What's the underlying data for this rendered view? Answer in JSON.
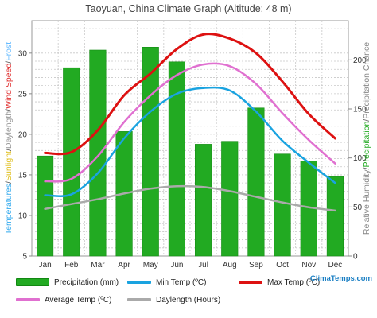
{
  "chart_data": {
    "type": "bar+line",
    "title": "Taoyuan, China Climate Graph (Altitude: 48 m)",
    "categories": [
      "Jan",
      "Feb",
      "Mar",
      "Apr",
      "May",
      "Jun",
      "Jul",
      "Aug",
      "Sep",
      "Oct",
      "Nov",
      "Dec"
    ],
    "left_axis": {
      "label_parts": [
        {
          "text": "Temperatures",
          "color": "#33aaee"
        },
        {
          "text": "/",
          "color": "#555555"
        },
        {
          "text": "Sunlight",
          "color": "#e0c020"
        },
        {
          "text": "/",
          "color": "#555555"
        },
        {
          "text": "Daylength",
          "color": "#999999"
        },
        {
          "text": "/",
          "color": "#555555"
        },
        {
          "text": "Wind Speed",
          "color": "#e03030"
        },
        {
          "text": "/",
          "color": "#555555"
        },
        {
          "text": "Frost",
          "color": "#66bbff"
        }
      ],
      "ylim": [
        5,
        34
      ],
      "ticks": [
        5,
        10,
        15,
        20,
        25,
        30
      ]
    },
    "right_axis": {
      "label_parts": [
        {
          "text": "Relative Humidity",
          "color": "#888888"
        },
        {
          "text": "/",
          "color": "#555555"
        },
        {
          "text": "Precipitation",
          "color": "#22aa22"
        },
        {
          "text": "/",
          "color": "#555555"
        },
        {
          "text": "Precipitation Chance",
          "color": "#888888"
        }
      ],
      "ylim": [
        0,
        240
      ],
      "ticks": [
        0,
        50,
        100,
        150,
        200
      ]
    },
    "grid": true,
    "legend_position": "bottom",
    "series": [
      {
        "name": "Precipitation (mm)",
        "kind": "bar",
        "axis": "right",
        "color": "#22aa22",
        "values": [
          102,
          192,
          210,
          127,
          213,
          198,
          114,
          117,
          151,
          104,
          97,
          81
        ]
      },
      {
        "name": "Min Temp (ºC)",
        "kind": "line",
        "axis": "left",
        "color": "#1aa3e0",
        "values": [
          12.5,
          12.6,
          15.2,
          19.5,
          22.8,
          25.0,
          25.7,
          25.4,
          22.8,
          19.2,
          16.5,
          14.0
        ]
      },
      {
        "name": "Max Temp (ºC)",
        "kind": "line",
        "axis": "left",
        "color": "#dd1111",
        "values": [
          17.7,
          17.8,
          20.5,
          24.8,
          27.5,
          30.5,
          32.3,
          31.8,
          30.0,
          26.5,
          22.5,
          19.5
        ]
      },
      {
        "name": "Average Temp (ºC)",
        "kind": "line",
        "axis": "left",
        "color": "#e070d0",
        "values": [
          14.2,
          14.5,
          17.3,
          21.5,
          24.8,
          27.3,
          28.6,
          28.4,
          26.2,
          22.6,
          19.3,
          16.4
        ]
      },
      {
        "name": "Daylength (Hours)",
        "kind": "line",
        "axis": "left",
        "color": "#aaaaaa",
        "values": [
          10.8,
          11.4,
          12.0,
          12.7,
          13.3,
          13.6,
          13.5,
          13.0,
          12.3,
          11.6,
          11.0,
          10.6
        ]
      }
    ]
  },
  "legend": {
    "precip": "Precipitation (mm)",
    "min": "Min Temp (ºC)",
    "max": "Max Temp (ºC)",
    "avg": "Average Temp (ºC)",
    "day": "Daylength (Hours)"
  },
  "brand": "ClimaTemps.com"
}
